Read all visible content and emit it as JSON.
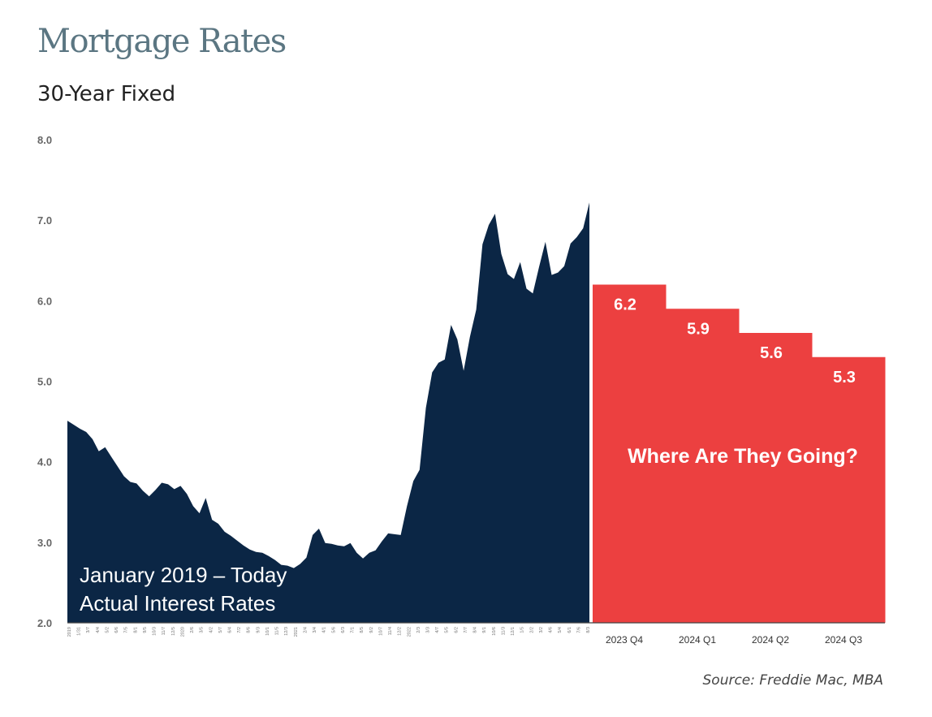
{
  "header": {
    "title": "Mortgage Rates",
    "subtitle": "30-Year Fixed"
  },
  "source": "Source: Freddie Mac, MBA",
  "chart_data": {
    "type": "area",
    "ylim": [
      2.0,
      8.0
    ],
    "yticks": [
      "8.0",
      "7.0",
      "6.0",
      "5.0",
      "4.0",
      "3.0",
      "2.0"
    ],
    "grid": false,
    "colors": {
      "actual": "#0b2645",
      "forecast": "#ec4040"
    },
    "actual": {
      "annotation": [
        "January 2019 – Today",
        "Actual Interest Rates"
      ],
      "x_tick_labels": [
        "2019",
        "1/31",
        "3/7",
        "4/4",
        "5/2",
        "6/6",
        "7/5",
        "8/1",
        "9/5",
        "10/3",
        "11/7",
        "12/5",
        "2020",
        "2/6",
        "3/5",
        "4/2",
        "5/7",
        "6/4",
        "7/2",
        "8/6",
        "9/3",
        "10/1",
        "11/5",
        "12/3",
        "2021",
        "2/4",
        "3/4",
        "4/1",
        "5/6",
        "6/3",
        "7/1",
        "8/5",
        "9/2",
        "10/7",
        "11/4",
        "12/2",
        "2022",
        "2/3",
        "3/3",
        "4/7",
        "5/5",
        "6/2",
        "7/7",
        "8/4",
        "9/1",
        "10/6",
        "11/3",
        "12/1",
        "1/5",
        "2/2",
        "3/2",
        "4/6",
        "5/4",
        "6/1",
        "7/6",
        "8/3"
      ],
      "values": [
        4.51,
        4.46,
        4.41,
        4.37,
        4.28,
        4.13,
        4.18,
        4.06,
        3.94,
        3.82,
        3.75,
        3.73,
        3.64,
        3.57,
        3.65,
        3.74,
        3.72,
        3.66,
        3.7,
        3.6,
        3.45,
        3.36,
        3.55,
        3.28,
        3.23,
        3.13,
        3.08,
        3.02,
        2.96,
        2.91,
        2.88,
        2.87,
        2.83,
        2.78,
        2.72,
        2.71,
        2.68,
        2.73,
        2.81,
        3.09,
        3.17,
        2.99,
        2.98,
        2.96,
        2.95,
        2.99,
        2.87,
        2.8,
        2.87,
        2.9,
        3.01,
        3.11,
        3.1,
        3.09,
        3.45,
        3.76,
        3.9,
        4.67,
        5.11,
        5.23,
        5.27,
        5.7,
        5.52,
        5.13,
        5.55,
        5.89,
        6.7,
        6.94,
        7.08,
        6.58,
        6.33,
        6.27,
        6.48,
        6.15,
        6.09,
        6.42,
        6.73,
        6.32,
        6.35,
        6.43,
        6.71,
        6.79,
        6.9,
        7.22
      ]
    },
    "forecast": {
      "title": "Where Are They Going?",
      "categories": [
        "2023 Q4",
        "2024 Q1",
        "2024 Q2",
        "2024 Q3"
      ],
      "values": [
        6.2,
        5.9,
        5.6,
        5.3
      ]
    }
  }
}
